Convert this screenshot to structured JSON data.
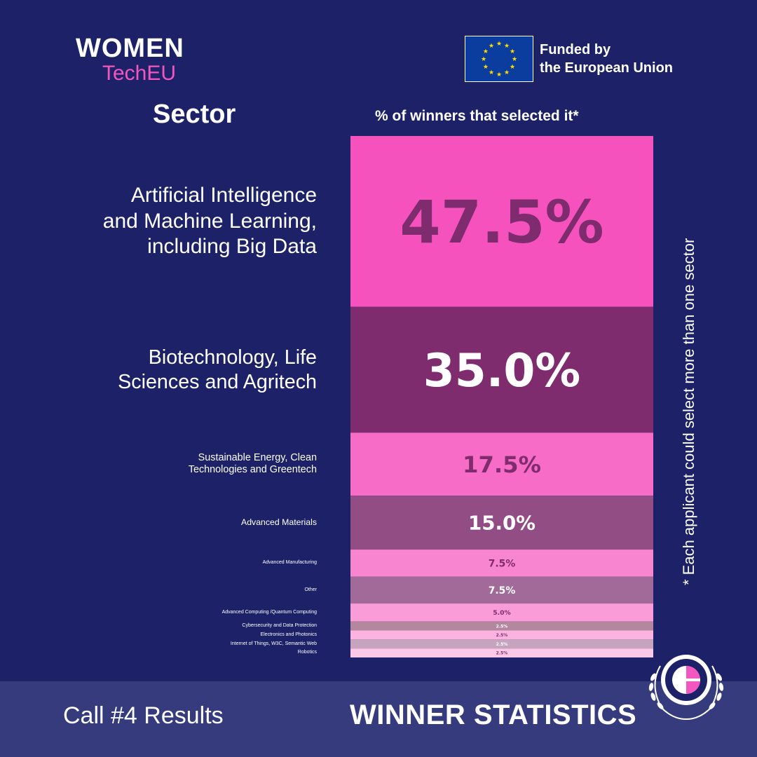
{
  "logo": {
    "line1": "WOMEN",
    "line2": "TechEU"
  },
  "eu": {
    "line1": "Funded by",
    "line2": "the European Union"
  },
  "headers": {
    "sector": "Sector",
    "percent": "% of winners that selected it*"
  },
  "note": "* Each applicant could select more than one sector",
  "footer": {
    "left": "Call #4 Results",
    "right": "WINNER STATISTICS"
  },
  "colors": {
    "background": "#1c2168",
    "footer": "#353b7c",
    "accent": "#f257c0"
  },
  "chart_data": {
    "type": "bar",
    "orientation": "stacked-column",
    "categories": [
      "Artificial Intelligence and Machine Learning, including Big Data",
      "Biotechnology, Life Sciences and Agritech",
      "Sustainable Energy, Clean Technologies and Greentech",
      "Advanced Materials",
      "Advanced Manufacturing",
      "Other",
      "Advanced Computing /Quantum Computing",
      "Cybersecurity and Data Protection",
      "Electronics and Photonics",
      "Internet of Things, W3C, Semantic Web",
      "Robotics"
    ],
    "category_lines": [
      [
        "Artificial Intelligence",
        "and Machine Learning,",
        "including Big Data"
      ],
      [
        "Biotechnology, Life",
        "Sciences and Agritech"
      ],
      [
        "Sustainable Energy, Clean",
        "Technologies and Greentech"
      ],
      [
        "Advanced Materials"
      ],
      [
        "Advanced Manufacturing"
      ],
      [
        "Other"
      ],
      [
        "Advanced Computing /Quantum Computing"
      ],
      [
        "Cybersecurity and Data Protection"
      ],
      [
        "Electronics and Photonics"
      ],
      [
        "Internet of Things, W3C, Semantic Web"
      ],
      [
        "Robotics"
      ]
    ],
    "values": [
      47.5,
      35.0,
      17.5,
      15.0,
      7.5,
      7.5,
      5.0,
      2.5,
      2.5,
      2.5,
      2.5
    ],
    "value_labels": [
      "47.5%",
      "35.0%",
      "17.5%",
      "15.0%",
      "7.5%",
      "7.5%",
      "5.0%",
      "2.5%",
      "2.5%",
      "2.5%",
      "2.5%"
    ],
    "fill_colors": [
      "#f552be",
      "#7f2c6f",
      "#f76cc6",
      "#924d85",
      "#f885cf",
      "#a26a98",
      "#fa9cd8",
      "#b3879e",
      "#fbb4e0",
      "#c7a4be",
      "#fcc8e8"
    ],
    "label_colors": [
      "#7f2c6f",
      "#ffffff",
      "#7f2c6f",
      "#ffffff",
      "#7f2c6f",
      "#ffffff",
      "#7f2c6f",
      "#ffffff",
      "#7f2c6f",
      "#ffffff",
      "#7f2c6f"
    ]
  }
}
